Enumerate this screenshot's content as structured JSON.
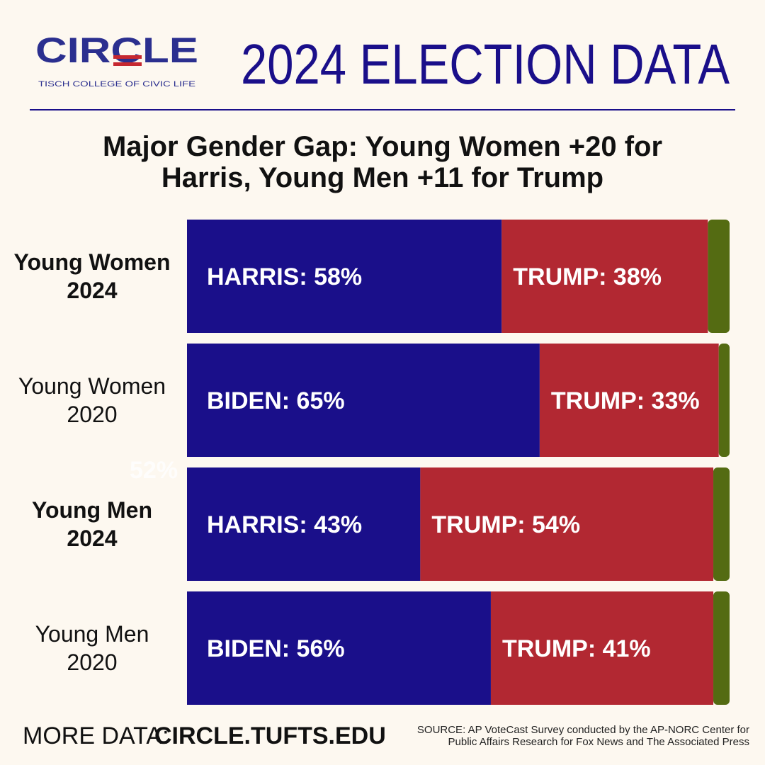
{
  "logo": {
    "name": "CIRCLE",
    "tagline": "TISCH COLLEGE OF CIVIC LIFE"
  },
  "header": {
    "title": "2024 ELECTION DATA"
  },
  "chart_data": {
    "type": "stacked-bar-horizontal",
    "title": "Major Gender Gap: Young Women +20 for Harris, Young Men +11 for Trump",
    "categories": [
      "Young Women 2024",
      "Young Women 2020",
      "Young Men 2024",
      "Young Men 2020"
    ],
    "bold_categories": [
      true,
      false,
      true,
      false
    ],
    "xlim": [
      0,
      100
    ],
    "series": [
      {
        "color": "#1a0f8a",
        "values": [
          58,
          65,
          43,
          56
        ],
        "value_labels": [
          "HARRIS: 58%",
          "BIDEN: 65%",
          "HARRIS: 43%",
          "BIDEN: 56%"
        ]
      },
      {
        "color": "#b22832",
        "values": [
          38,
          33,
          54,
          41
        ],
        "value_labels": [
          "TRUMP: 38%",
          "TRUMP: 33%",
          "TRUMP: 54%",
          "TRUMP: 41%"
        ]
      },
      {
        "color": "#546b12",
        "values": [
          4,
          2,
          3,
          3
        ]
      }
    ],
    "annotation": "52%"
  },
  "footer": {
    "more_label": "MORE DATA:",
    "link": "CIRCLE.TUFTS.EDU",
    "source": "SOURCE: AP VoteCast Survey conducted by the AP-NORC Center for Public Affairs Research for Fox News and The Associated Press"
  }
}
